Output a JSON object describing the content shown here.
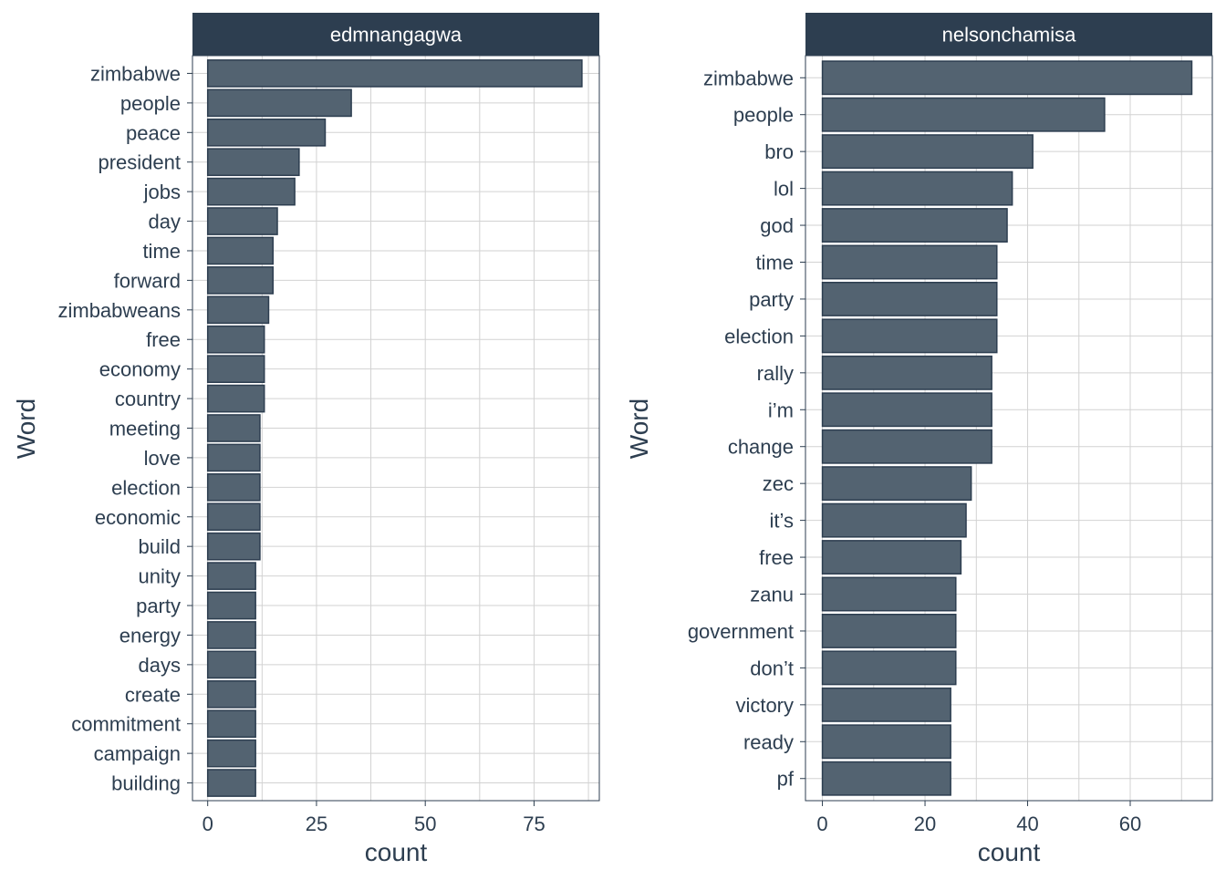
{
  "chart_data": [
    {
      "type": "bar",
      "orientation": "horizontal",
      "title": "edmnangagwa",
      "xlabel": "count",
      "ylabel": "Word",
      "xlim": [
        -3.5,
        90
      ],
      "xticks": [
        0,
        25,
        50,
        75
      ],
      "grid": true,
      "categories": [
        "zimbabwe",
        "people",
        "peace",
        "president",
        "jobs",
        "day",
        "time",
        "forward",
        "zimbabweans",
        "free",
        "economy",
        "country",
        "meeting",
        "love",
        "election",
        "economic",
        "build",
        "unity",
        "party",
        "energy",
        "days",
        "create",
        "commitment",
        "campaign",
        "building"
      ],
      "values": [
        86,
        33,
        27,
        21,
        20,
        16,
        15,
        15,
        14,
        13,
        13,
        13,
        12,
        12,
        12,
        12,
        12,
        11,
        11,
        11,
        11,
        11,
        11,
        11,
        11
      ]
    },
    {
      "type": "bar",
      "orientation": "horizontal",
      "title": "nelsonchamisa",
      "xlabel": "count",
      "ylabel": "Word",
      "xlim": [
        -3.3,
        76
      ],
      "xticks": [
        0,
        20,
        40,
        60
      ],
      "grid": true,
      "categories": [
        "zimbabwe",
        "people",
        "bro",
        "lol",
        "god",
        "time",
        "party",
        "election",
        "rally",
        "i’m",
        "change",
        "zec",
        "it’s",
        "free",
        "zanu",
        "government",
        "don’t",
        "victory",
        "ready",
        "pf"
      ],
      "values": [
        72,
        55,
        41,
        37,
        36,
        34,
        34,
        34,
        33,
        33,
        33,
        29,
        28,
        27,
        26,
        26,
        26,
        25,
        25,
        25
      ]
    }
  ],
  "colors": {
    "strip_bg": "#2d3e50",
    "strip_text": "#ffffff",
    "bar_fill": "#536371",
    "bar_stroke": "#2d3e50",
    "panel_border": "#2d3e50",
    "grid": "#d2d2d2",
    "text": "#2d3e50"
  }
}
